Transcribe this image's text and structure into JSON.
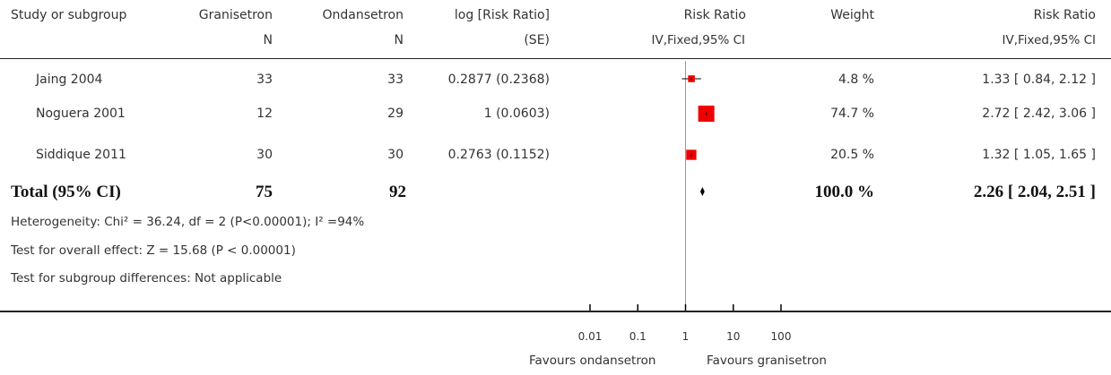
{
  "header": {
    "study": "Study or subgroup",
    "group1": "Granisetron",
    "group2": "Ondansetron",
    "logrr": "log [Risk Ratio]",
    "rr_plot": "Risk Ratio",
    "weight": "Weight",
    "rr_value": "Risk Ratio",
    "n1": "N",
    "n2": "N",
    "se": "(SE)",
    "method_plot": "IV,Fixed,95% CI",
    "method_value": "IV,Fixed,95% CI"
  },
  "rows": [
    {
      "study": "Jaing 2004",
      "n1": "33",
      "n2": "33",
      "logrr": "0.2877 (0.2368)",
      "weight": "4.8 %",
      "ci": "1.33 [ 0.84, 2.12 ]"
    },
    {
      "study": "Noguera 2001",
      "n1": "12",
      "n2": "29",
      "logrr": "1 (0.0603)",
      "weight": "74.7 %",
      "ci": "2.72 [ 2.42, 3.06 ]"
    },
    {
      "study": "Siddique 2011",
      "n1": "30",
      "n2": "30",
      "logrr": "0.2763 (0.1152)",
      "weight": "20.5 %",
      "ci": "1.32 [ 1.05, 1.65 ]"
    }
  ],
  "total": {
    "label": "Total (95% CI)",
    "n1": "75",
    "n2": "92",
    "weight": "100.0 %",
    "ci": "2.26 [ 2.04, 2.51 ]"
  },
  "footnotes": {
    "heterogeneity": "Heterogeneity: Chi² = 36.24, df = 2 (P<0.00001); I² =94%",
    "overall": "Test for overall effect: Z = 15.68 (P < 0.00001)",
    "subgroup": "Test for subgroup differences: Not applicable"
  },
  "axis": {
    "favours_left": "Favours ondansetron",
    "favours_right": "Favours granisetron"
  },
  "chart_data": {
    "type": "forest",
    "scale": "log",
    "xlim": [
      0.01,
      100
    ],
    "ticks": [
      {
        "value": 0.01,
        "label": "0.01"
      },
      {
        "value": 0.1,
        "label": "0.1"
      },
      {
        "value": 1,
        "label": "1"
      },
      {
        "value": 10,
        "label": "10"
      },
      {
        "value": 100,
        "label": "100"
      }
    ],
    "null_value": 1,
    "studies": [
      {
        "name": "Jaing 2004",
        "rr": 1.33,
        "lower": 0.84,
        "upper": 2.12,
        "weight": 4.8
      },
      {
        "name": "Noguera 2001",
        "rr": 2.72,
        "lower": 2.42,
        "upper": 3.06,
        "weight": 74.7
      },
      {
        "name": "Siddique 2011",
        "rr": 1.32,
        "lower": 1.05,
        "upper": 1.65,
        "weight": 20.5
      }
    ],
    "pooled": {
      "rr": 2.26,
      "lower": 2.04,
      "upper": 2.51
    },
    "colors": {
      "box": "#ee0000",
      "line": "#000000",
      "null_line": "#999999"
    }
  }
}
